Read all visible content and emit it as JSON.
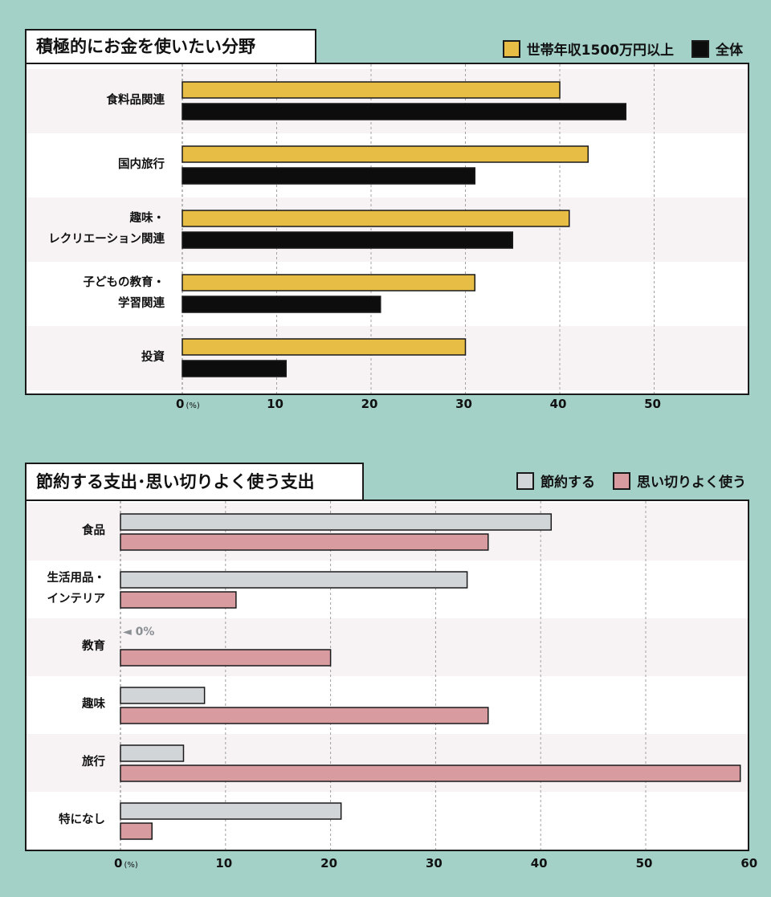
{
  "chart_data": [
    {
      "type": "bar",
      "orientation": "horizontal",
      "title": "積極的にお金を使いたい分野",
      "unit": "(%)",
      "categories": [
        "食料品関連",
        "国内旅行",
        "趣味・\nレクリエーション関連",
        "子どもの教育・\n学習関連",
        "投資"
      ],
      "series": [
        {
          "name": "世帯年収1500万円以上",
          "color": "#e8bd45",
          "values": [
            40,
            43,
            41,
            31,
            30
          ]
        },
        {
          "name": "全体",
          "color": "#0d0d0d",
          "values": [
            47,
            31,
            35,
            21,
            11
          ]
        }
      ],
      "xlim": [
        0,
        59
      ],
      "ticks": [
        "0",
        "10",
        "20",
        "30",
        "40",
        "50"
      ],
      "grid": true,
      "legend": "top-right",
      "band_color": "#f7f3f4"
    },
    {
      "type": "bar",
      "orientation": "horizontal",
      "title": "節約する支出･思い切りよく使う支出",
      "unit": "(%)",
      "categories": [
        "食品",
        "生活用品・\nインテリア",
        "教育",
        "趣味",
        "旅行",
        "特になし"
      ],
      "series": [
        {
          "name": "節約する",
          "color": "#d2d5d8",
          "values": [
            41,
            33,
            0,
            8,
            6,
            21
          ]
        },
        {
          "name": "思い切りよく使う",
          "color": "#d89ba0",
          "values": [
            35,
            11,
            20,
            35,
            59,
            3
          ]
        }
      ],
      "xlim": [
        0,
        60
      ],
      "ticks": [
        "0",
        "10",
        "20",
        "30",
        "40",
        "50",
        "60"
      ],
      "annotation": "◄ 0%",
      "grid": true,
      "legend": "top-right",
      "band_color": "#f7f3f4"
    }
  ]
}
